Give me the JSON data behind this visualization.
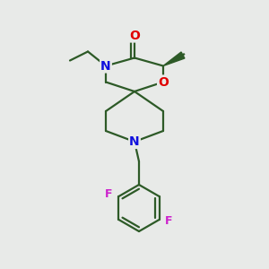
{
  "background_color": "#e8eae8",
  "bond_color": "#2d5a27",
  "bond_width": 1.6,
  "atom_colors": {
    "O": "#e00000",
    "N": "#1010dd",
    "F": "#cc22cc",
    "C": "#000000"
  },
  "figsize": [
    3.0,
    3.0
  ],
  "dpi": 100
}
